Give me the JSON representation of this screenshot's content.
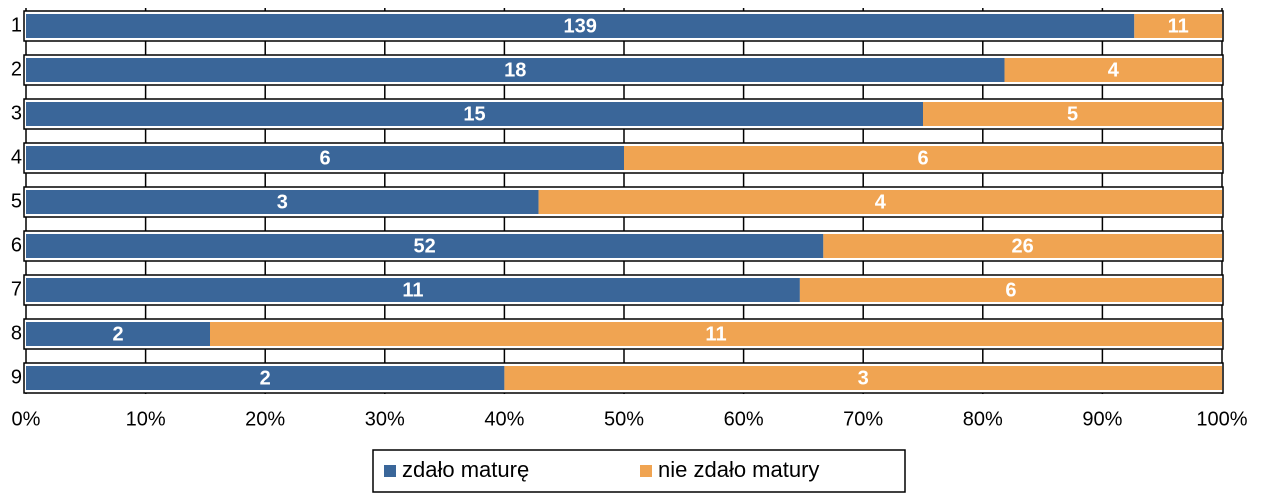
{
  "chart_data": {
    "type": "bar_percent_stacked_horizontal",
    "categories": [
      "1",
      "2",
      "3",
      "4",
      "5",
      "6",
      "7",
      "8",
      "9"
    ],
    "series": [
      {
        "name": "zdało maturę",
        "color": "#3a6699",
        "values": [
          139,
          18,
          15,
          6,
          3,
          52,
          11,
          2,
          2
        ]
      },
      {
        "name": "nie zdało matury",
        "color": "#f0a452",
        "values": [
          11,
          4,
          5,
          6,
          4,
          26,
          6,
          11,
          3
        ]
      }
    ],
    "xlim": [
      0,
      100
    ],
    "xticks": [
      {
        "value": 0,
        "label": "0%"
      },
      {
        "value": 10,
        "label": "10%"
      },
      {
        "value": 20,
        "label": "20%"
      },
      {
        "value": 30,
        "label": "30%"
      },
      {
        "value": 40,
        "label": "40%"
      },
      {
        "value": 50,
        "label": "50%"
      },
      {
        "value": 60,
        "label": "60%"
      },
      {
        "value": 70,
        "label": "70%"
      },
      {
        "value": 80,
        "label": "80%"
      },
      {
        "value": 90,
        "label": "90%"
      },
      {
        "value": 100,
        "label": "100%"
      }
    ],
    "grid": true,
    "legend": "bottom"
  }
}
